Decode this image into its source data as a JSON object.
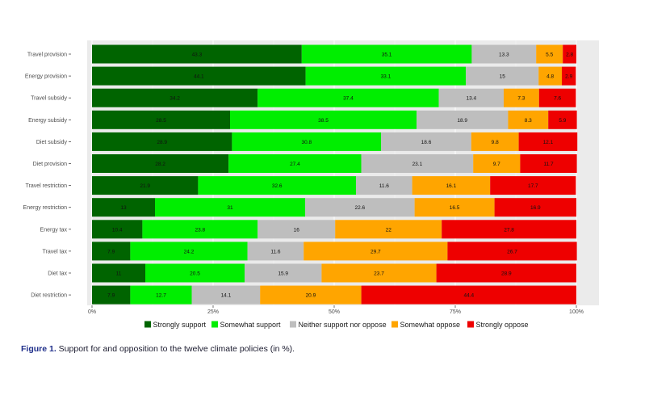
{
  "chart_data": {
    "type": "bar",
    "orientation": "horizontal",
    "stacked": true,
    "categories": [
      "Travel provision",
      "Energy provision",
      "Travel subsidy",
      "Energy subsidy",
      "Diet subsidy",
      "Diet provision",
      "Travel restriction",
      "Energy restriction",
      "Energy tax",
      "Travel tax",
      "Diet tax",
      "Diet restriction"
    ],
    "series": [
      {
        "name": "Strongly support",
        "color": "#006400",
        "values": [
          43.3,
          44.1,
          34.2,
          28.5,
          28.9,
          28.2,
          21.9,
          13,
          10.4,
          7.9,
          11,
          7.9
        ]
      },
      {
        "name": "Somewhat support",
        "color": "#00ee00",
        "values": [
          35.1,
          33.1,
          37.4,
          38.5,
          30.8,
          27.4,
          32.6,
          31,
          23.8,
          24.2,
          20.5,
          12.7
        ]
      },
      {
        "name": "Neither support nor oppose",
        "color": "#bebebe",
        "values": [
          13.3,
          15,
          13.4,
          18.9,
          18.6,
          23.1,
          11.6,
          22.6,
          16,
          11.6,
          15.9,
          14.1
        ]
      },
      {
        "name": "Somewhat oppose",
        "color": "#ffa500",
        "values": [
          5.5,
          4.8,
          7.3,
          8.3,
          9.8,
          9.7,
          16.1,
          16.5,
          22,
          29.7,
          23.7,
          20.9
        ]
      },
      {
        "name": "Strongly oppose",
        "color": "#ee0000",
        "values": [
          2.8,
          2.9,
          7.6,
          5.9,
          12.1,
          11.7,
          17.7,
          16.9,
          27.8,
          26.7,
          28.9,
          44.4
        ]
      }
    ],
    "xlim": [
      0,
      100
    ],
    "xticks": [
      "0%",
      "25%",
      "50%",
      "75%",
      "100%"
    ],
    "grid": true,
    "legend_position": "bottom"
  },
  "caption": {
    "label": "Figure 1.",
    "text": " Support for and opposition to the twelve climate policies (in %)."
  }
}
